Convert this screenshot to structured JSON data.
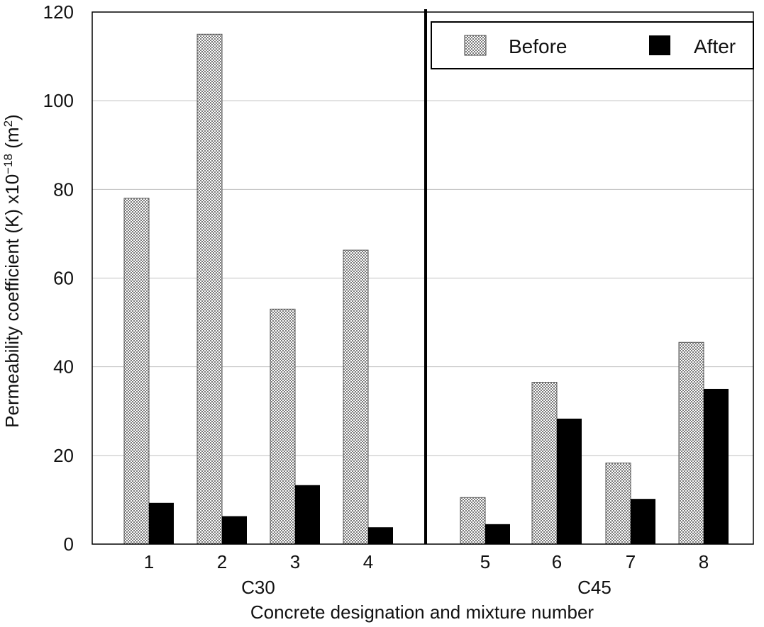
{
  "chart_data": {
    "type": "bar",
    "xlabel": "Concrete designation and mixture number",
    "ylabel": "Permeability coefficient (K) x10",
    "ylabel_exponent": "−18",
    "ylabel_unit_open": " (m",
    "ylabel_unit_exponent": "2",
    "ylabel_unit_close": ")",
    "ylim": [
      0,
      120
    ],
    "yticks": [
      "0",
      "20",
      "40",
      "60",
      "80",
      "100",
      "120"
    ],
    "grid": "horizontal",
    "legend_position": "top-right",
    "categories": [
      "1",
      "2",
      "3",
      "4",
      "5",
      "6",
      "7",
      "8"
    ],
    "groups": [
      {
        "label": "C30",
        "categories": [
          "1",
          "2",
          "3",
          "4"
        ]
      },
      {
        "label": "C45",
        "categories": [
          "5",
          "6",
          "7",
          "8"
        ]
      }
    ],
    "series": [
      {
        "name": "Before",
        "pattern": "dotted-gray",
        "values": [
          78,
          115,
          53,
          66.3,
          10.5,
          36.5,
          18.3,
          45.5
        ]
      },
      {
        "name": "After",
        "pattern": "solid-black",
        "values": [
          9.3,
          6.3,
          13.3,
          3.8,
          4.5,
          28.3,
          10.2,
          35
        ]
      }
    ],
    "colors": {
      "before_fill": "#c8c8c8",
      "after_fill": "#000000",
      "grid": "#c0c0c0",
      "axis": "#000000"
    }
  }
}
